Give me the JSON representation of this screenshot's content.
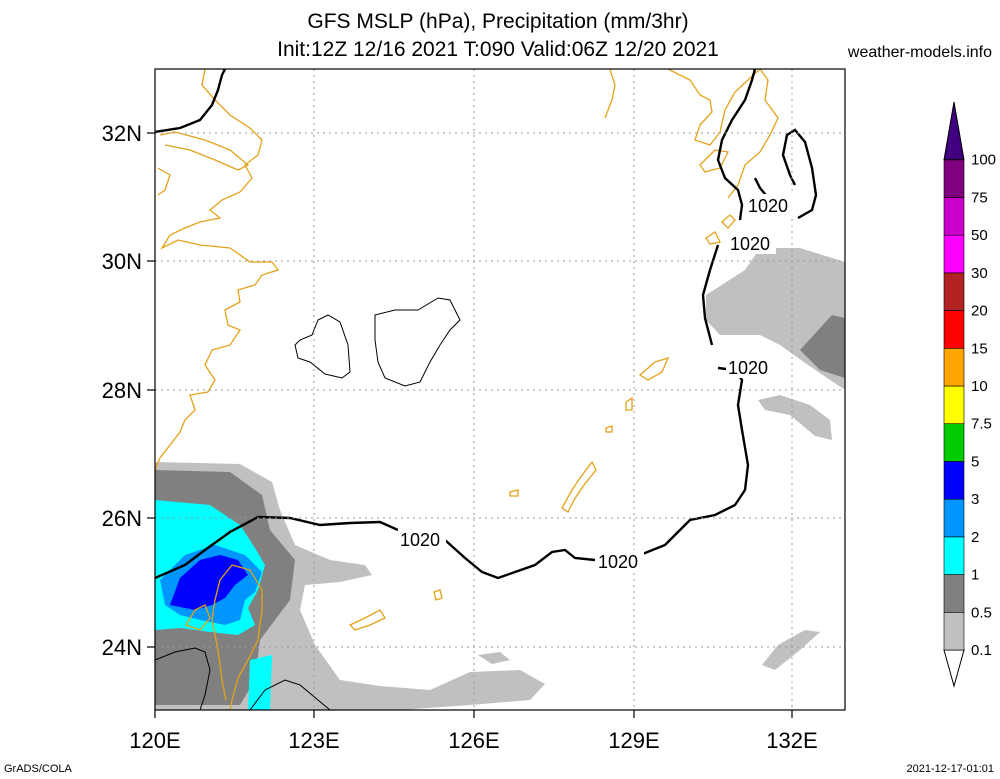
{
  "title_line1": "GFS MSLP (hPa), Precipitation (mm/3hr)",
  "title_line2": "Init:12Z 12/16 2021 T:090 Valid:06Z 12/20 2021",
  "source": "weather-models.info",
  "footer_left": "GrADS/COLA",
  "footer_right": "2021-12-17-01:01",
  "map": {
    "lon_range": [
      120,
      133
    ],
    "lat_range": [
      23,
      33
    ],
    "lon_ticks": [
      "120E",
      "123E",
      "126E",
      "129E",
      "132E"
    ],
    "lat_ticks": [
      "32N",
      "30N",
      "28N",
      "26N",
      "24N"
    ],
    "isobar_label": "1020"
  },
  "colorbar": {
    "levels": [
      "0.1",
      "0.5",
      "1",
      "2",
      "3",
      "5",
      "7.5",
      "10",
      "15",
      "20",
      "30",
      "50",
      "75",
      "100"
    ],
    "colors": [
      "#c0c0c0",
      "#808080",
      "#00ffff",
      "#0096ff",
      "#0000ff",
      "#00cc00",
      "#ffff00",
      "#ffa500",
      "#ff0000",
      "#b22222",
      "#ff00ff",
      "#cc00cc",
      "#800080",
      "#400080"
    ]
  }
}
